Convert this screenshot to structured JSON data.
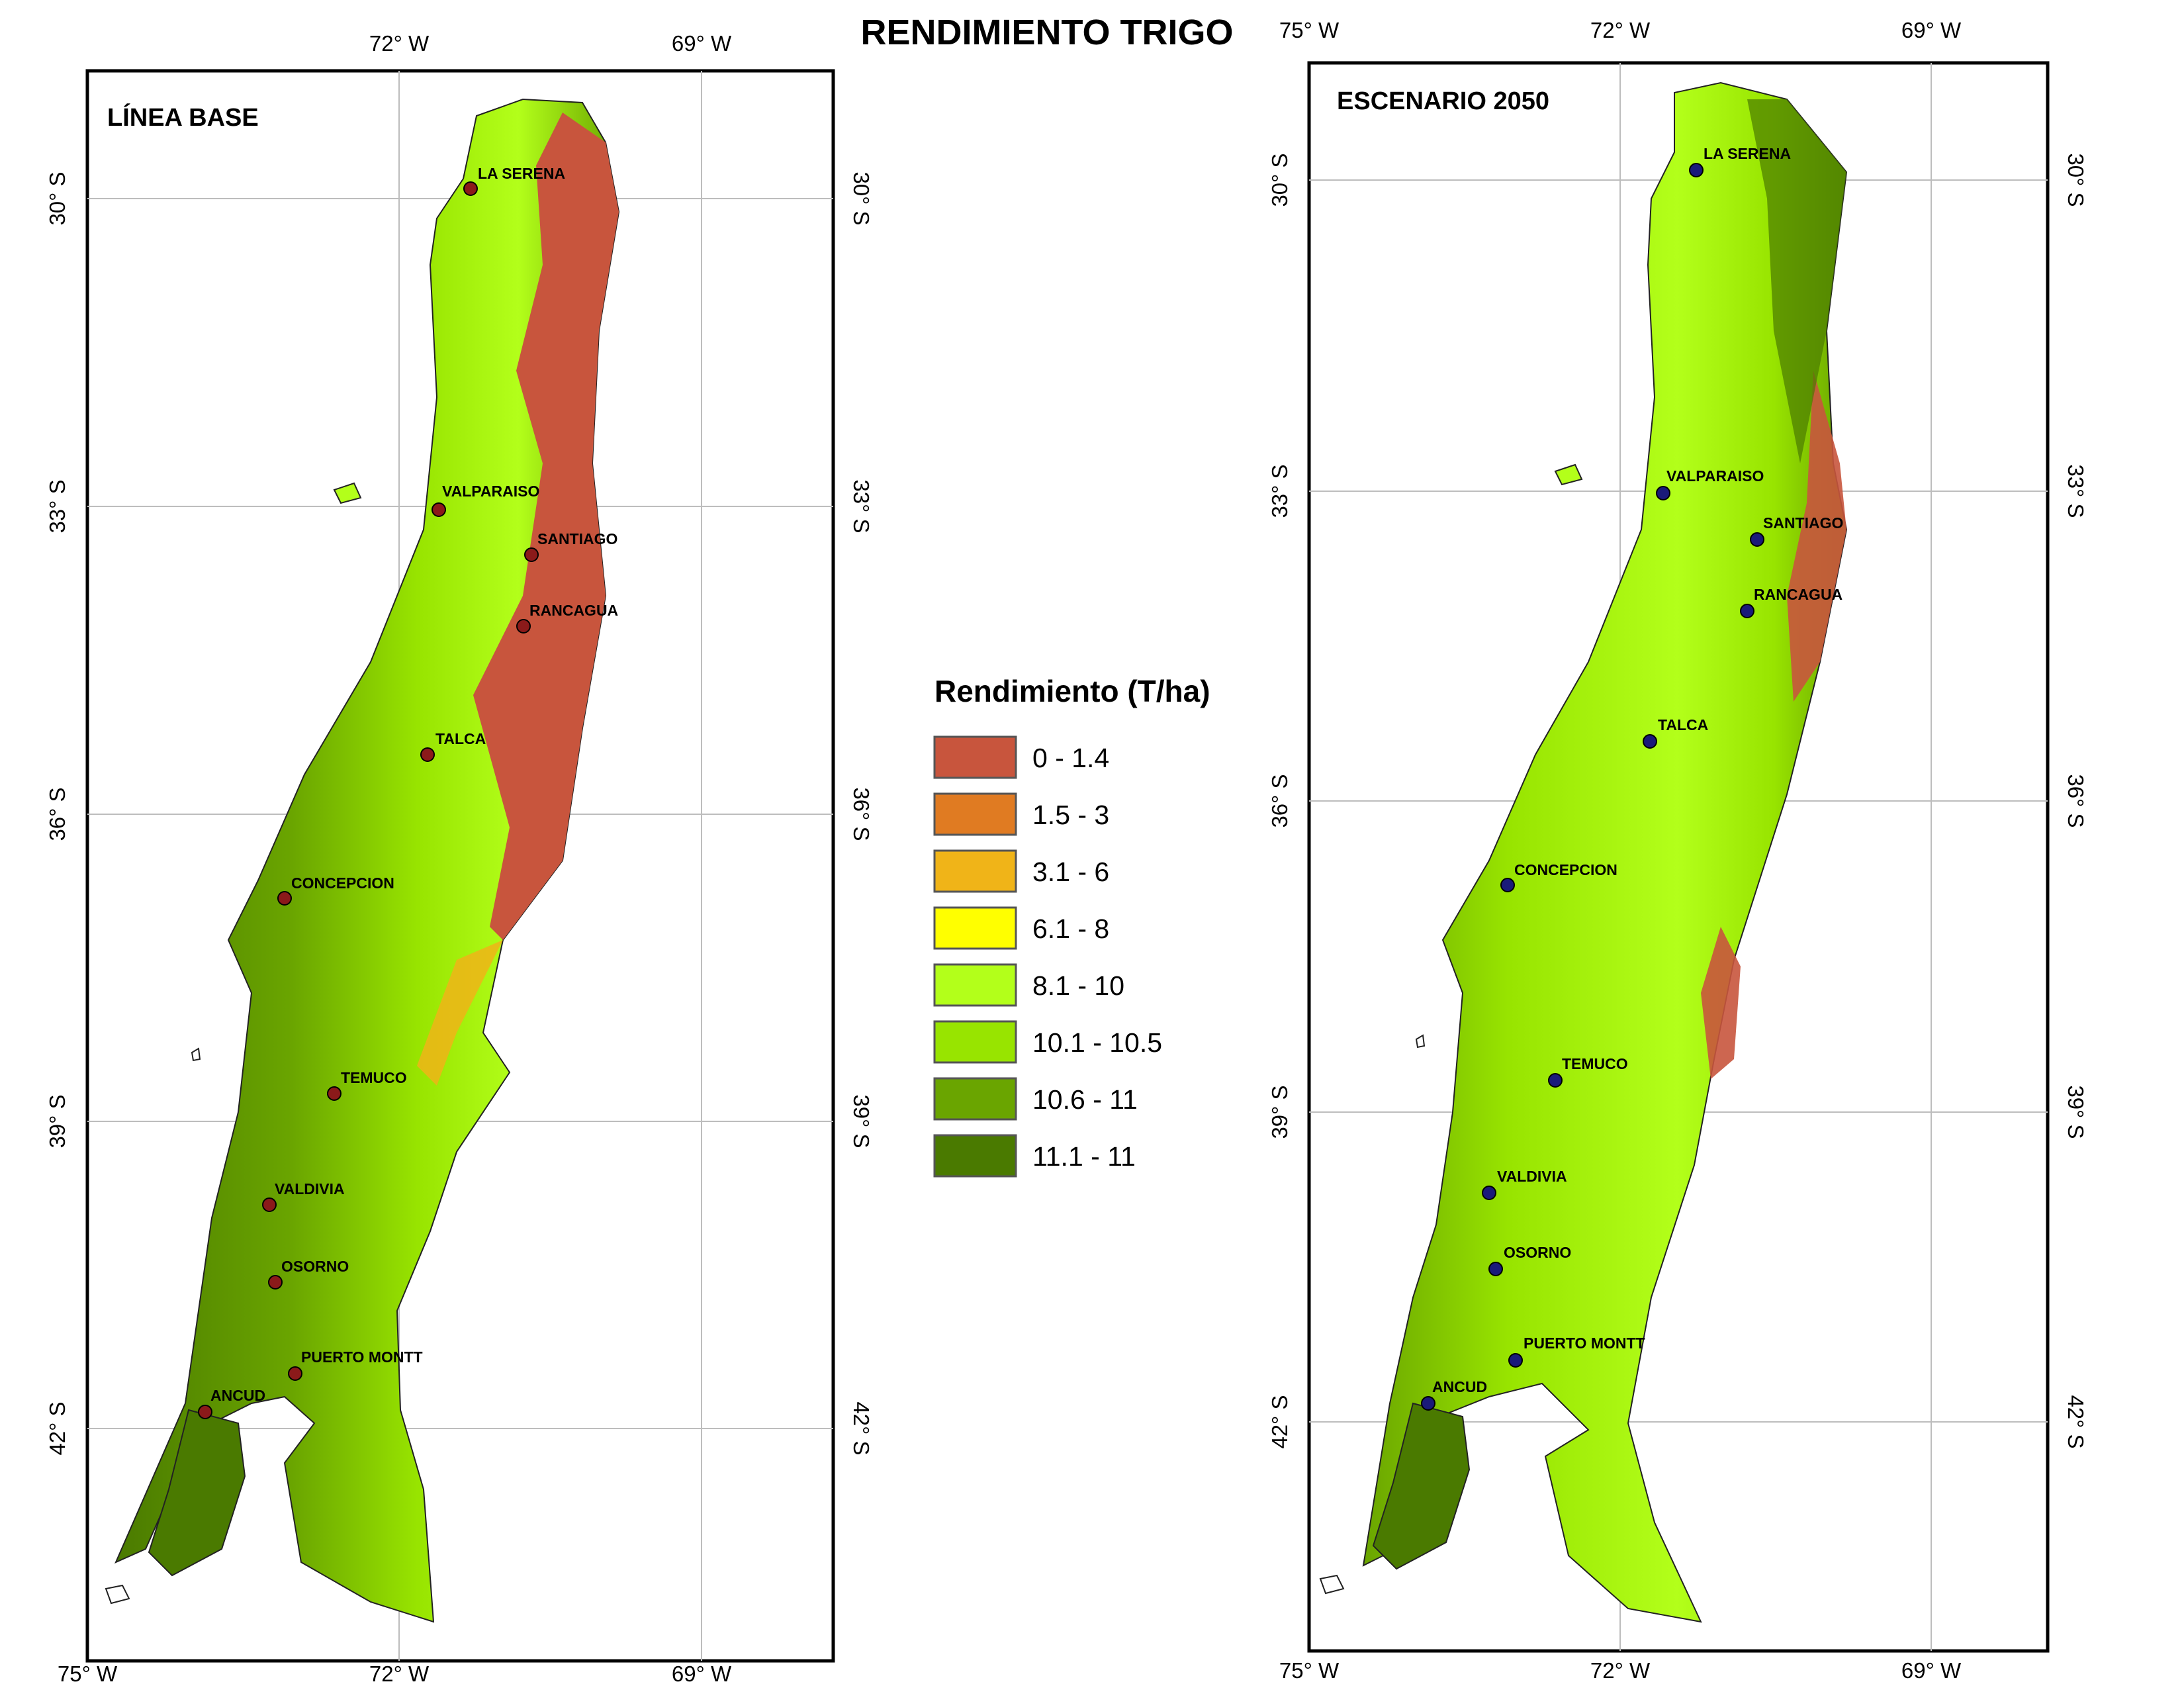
{
  "figure_title": "RENDIMIENTO TRIGO",
  "maps": [
    {
      "title": "LÍNEA BASE",
      "city_color": "#8b1a1a",
      "lon_ticks_top": [
        "72° W",
        "69° W"
      ],
      "lon_ticks_bottom": [
        "75° W",
        "72° W",
        "69° W"
      ],
      "lat_ticks": [
        "30° S",
        "33° S",
        "36° S",
        "39° S",
        "42° S"
      ],
      "cities": [
        "LA SERENA",
        "VALPARAISO",
        "SANTIAGO",
        "RANCAGUA",
        "TALCA",
        "CONCEPCION",
        "TEMUCO",
        "VALDIVIA",
        "OSORNO",
        "PUERTO MONTT",
        "ANCUD"
      ]
    },
    {
      "title": "ESCENARIO 2050",
      "city_color": "#1a1a7a",
      "lon_ticks_top": [
        "75° W",
        "72° W",
        "69° W"
      ],
      "lon_ticks_bottom": [
        "75° W",
        "72° W",
        "69° W"
      ],
      "lat_ticks": [
        "30° S",
        "33° S",
        "36° S",
        "39° S",
        "42° S"
      ],
      "cities": [
        "LA SERENA",
        "VALPARAISO",
        "SANTIAGO",
        "RANCAGUA",
        "TALCA",
        "CONCEPCION",
        "TEMUCO",
        "VALDIVIA",
        "OSORNO",
        "PUERTO MONTT",
        "ANCUD"
      ]
    }
  ],
  "legend": {
    "title": "Rendimiento (T/ha)",
    "items": [
      {
        "label": "0 - 1.4",
        "color": "#c8553d"
      },
      {
        "label": "1.5 - 3",
        "color": "#e07b22"
      },
      {
        "label": "3.1 - 6",
        "color": "#f0b418"
      },
      {
        "label": "6.1 - 8",
        "color": "#ffff00"
      },
      {
        "label": "8.1 - 10",
        "color": "#b3ff1a"
      },
      {
        "label": "10.1 - 10.5",
        "color": "#98e400"
      },
      {
        "label": "10.6 - 11",
        "color": "#6aa500"
      },
      {
        "label": "11.1 - 11",
        "color": "#4a7a00"
      }
    ]
  }
}
